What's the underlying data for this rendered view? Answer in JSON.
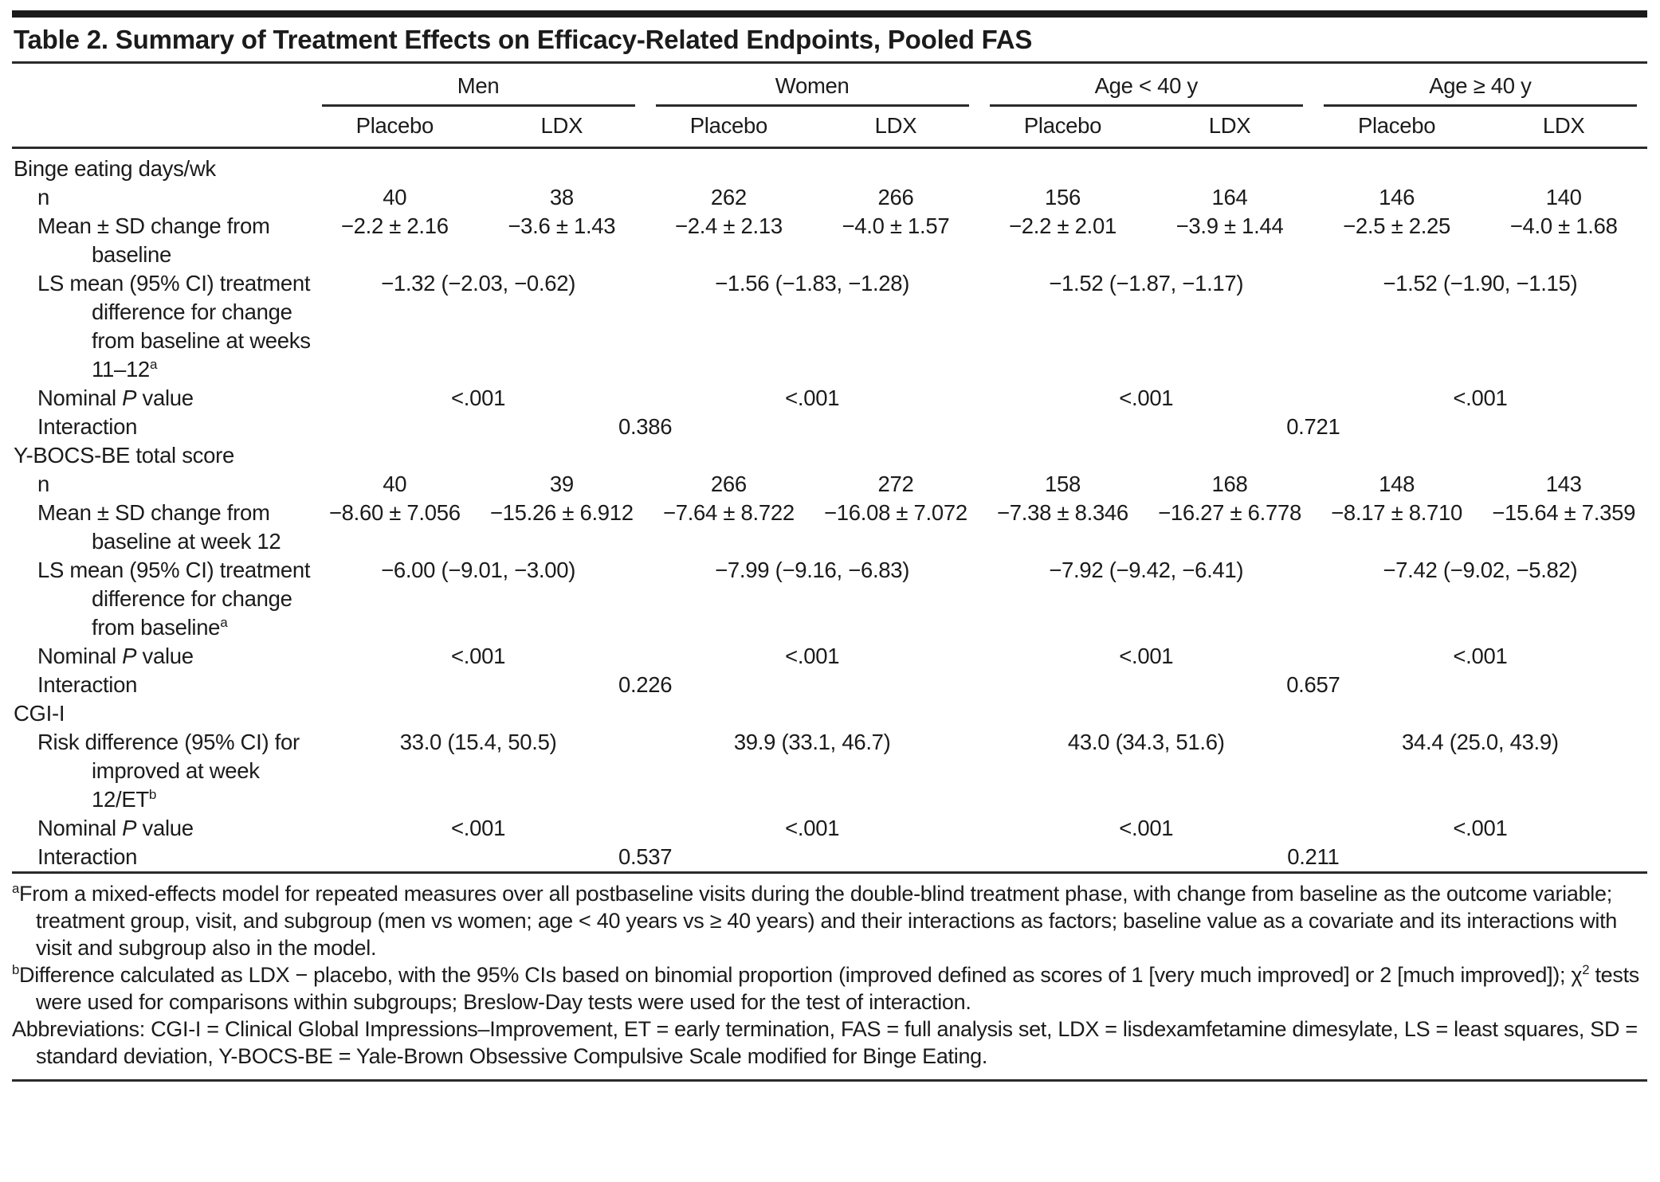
{
  "title": "Table 2. Summary of Treatment Effects on Efficacy-Related Endpoints, Pooled FAS",
  "header": {
    "groups": [
      "Men",
      "Women",
      "Age < 40 y",
      "Age ≥ 40 y"
    ],
    "sub": [
      "Placebo",
      "LDX"
    ]
  },
  "labels": {
    "n": "n",
    "p_1": "Nominal ",
    "p_2": "P",
    "p_3": " value",
    "interaction": "Interaction"
  },
  "binge": {
    "section": "Binge eating days/wk",
    "n": [
      "40",
      "38",
      "262",
      "266",
      "156",
      "164",
      "146",
      "140"
    ],
    "mean_label": "Mean ± SD change from baseline",
    "mean": [
      "−2.2 ± 2.16",
      "−3.6 ± 1.43",
      "−2.4 ± 2.13",
      "−4.0 ± 1.57",
      "−2.2 ± 2.01",
      "−3.9 ± 1.44",
      "−2.5 ± 2.25",
      "−4.0 ± 1.68"
    ],
    "ls_label": "LS mean (95% CI) treatment difference for change from baseline at weeks 11–12",
    "ls_sup": "a",
    "ls": [
      "−1.32 (−2.03, −0.62)",
      "−1.56 (−1.83, −1.28)",
      "−1.52 (−1.87, −1.17)",
      "−1.52 (−1.90, −1.15)"
    ],
    "p": [
      "<.001",
      "<.001",
      "<.001",
      "<.001"
    ],
    "interaction": [
      "0.386",
      "0.721"
    ]
  },
  "ybocs": {
    "section": "Y-BOCS-BE total score",
    "n": [
      "40",
      "39",
      "266",
      "272",
      "158",
      "168",
      "148",
      "143"
    ],
    "mean_label": "Mean ± SD change from baseline at week 12",
    "mean": [
      "−8.60 ± 7.056",
      "−15.26 ± 6.912",
      "−7.64 ± 8.722",
      "−16.08 ± 7.072",
      "−7.38 ± 8.346",
      "−16.27 ± 6.778",
      "−8.17 ± 8.710",
      "−15.64 ± 7.359"
    ],
    "ls_label": "LS mean (95% CI) treatment difference for change from baseline",
    "ls_sup": "a",
    "ls": [
      "−6.00 (−9.01, −3.00)",
      "−7.99 (−9.16, −6.83)",
      "−7.92 (−9.42, −6.41)",
      "−7.42 (−9.02, −5.82)"
    ],
    "p": [
      "<.001",
      "<.001",
      "<.001",
      "<.001"
    ],
    "interaction": [
      "0.226",
      "0.657"
    ]
  },
  "cgi": {
    "section": "CGI-I",
    "risk_label": "Risk difference (95% CI) for improved at week 12/ET",
    "risk_sup": "b",
    "risk": [
      "33.0 (15.4, 50.5)",
      "39.9 (33.1, 46.7)",
      "43.0 (34.3, 51.6)",
      "34.4 (25.0, 43.9)"
    ],
    "p": [
      "<.001",
      "<.001",
      "<.001",
      "<.001"
    ],
    "interaction": [
      "0.537",
      "0.211"
    ]
  },
  "footnotes": {
    "a_marker": "a",
    "a_text": "From a mixed-effects model for repeated measures over all postbaseline visits during the double-blind treatment phase, with change from baseline as the outcome variable; treatment group, visit, and subgroup (men vs women; age < 40 years vs ≥ 40 years) and their interactions as factors; baseline value as a covariate and its interactions with visit and subgroup also in the model.",
    "b_marker": "b",
    "b_text_1": "Difference calculated as LDX − placebo, with the 95% CIs based on binomial proportion (improved defined as scores of 1 [very much improved] or 2 [much improved]); χ",
    "b_sup": "2",
    "b_text_2": " tests were used for comparisons within subgroups; Breslow-Day tests were used for the test of interaction.",
    "abbreviations": "Abbreviations: CGI-I = Clinical Global Impressions–Improvement, ET = early termination, FAS = full analysis set, LDX = lisdexamfetamine dimesylate, LS = least squares, SD = standard deviation, Y-BOCS-BE = Yale-Brown Obsessive Compulsive Scale modified for Binge Eating."
  }
}
